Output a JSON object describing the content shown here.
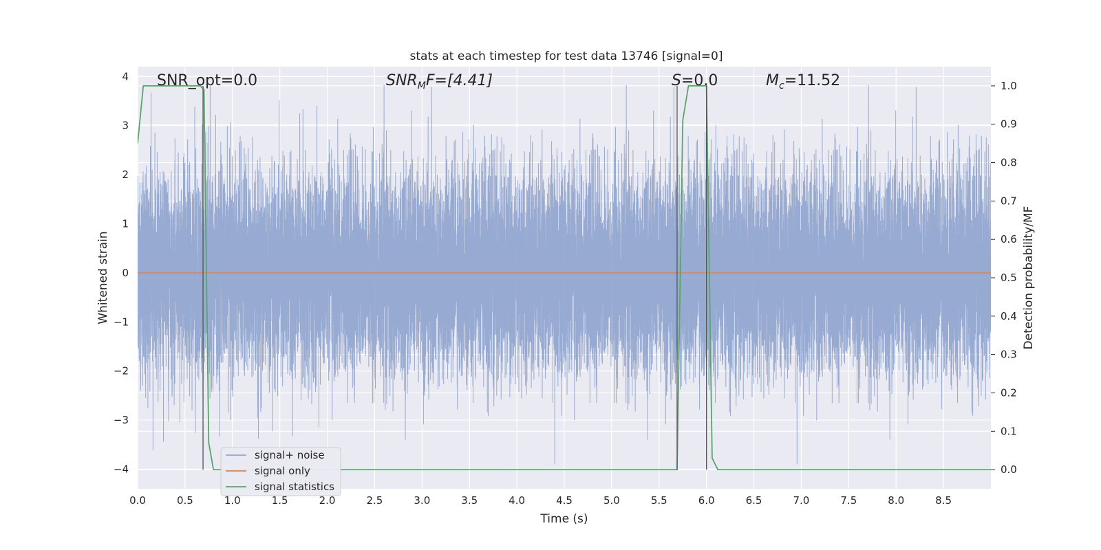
{
  "chart_data": {
    "type": "line",
    "title": "stats at each timestep for test data 13746 [signal=0]",
    "xlabel": "Time (s)",
    "ylabel_left": "Whitened strain",
    "ylabel_right": "Detection probability/MF",
    "xlim": [
      0,
      9
    ],
    "ylim_left": [
      -4.4,
      4.2
    ],
    "ylim_right": [
      -0.05,
      1.05
    ],
    "x_ticks": [
      0.0,
      0.5,
      1.0,
      1.5,
      2.0,
      2.5,
      3.0,
      3.5,
      4.0,
      4.5,
      5.0,
      5.5,
      6.0,
      6.5,
      7.0,
      7.5,
      8.0,
      8.5
    ],
    "x_tick_labels": [
      "0.0",
      "0.5",
      "1.0",
      "1.5",
      "2.0",
      "2.5",
      "3.0",
      "3.5",
      "4.0",
      "4.5",
      "5.0",
      "5.5",
      "6.0",
      "6.5",
      "7.0",
      "7.5",
      "8.0",
      "8.5"
    ],
    "y_left_ticks": [
      -4,
      -3,
      -2,
      -1,
      0,
      1,
      2,
      3,
      4
    ],
    "y_left_tick_labels": [
      "−4",
      "−3",
      "−2",
      "−1",
      "0",
      "1",
      "2",
      "3",
      "4"
    ],
    "y_right_ticks": [
      0.0,
      0.1,
      0.2,
      0.3,
      0.4,
      0.5,
      0.6,
      0.7,
      0.8,
      0.9,
      1.0
    ],
    "y_right_tick_labels": [
      "0.0",
      "0.1",
      "0.2",
      "0.3",
      "0.4",
      "0.5",
      "0.6",
      "0.7",
      "0.8",
      "0.9",
      "1.0"
    ],
    "grid": true,
    "legend_position": "lower-left",
    "annotations": {
      "snr_opt": "SNR_opt=0.0",
      "snr_mf_base": "SNR",
      "snr_mf_sub": "M",
      "snr_mf_rest": "F=[4.41]",
      "s_italic": "S",
      "s_rest": "=0.0",
      "mc_base": "M",
      "mc_sub": "c",
      "mc_rest": "=11.52"
    },
    "vertical_lines_x": [
      0.69,
      5.69,
      6.0
    ],
    "series": [
      {
        "name": "signal+ noise",
        "axis": "left",
        "color": "#92a6cf",
        "kind": "noise",
        "sample_rate_hz": 2048,
        "std": 1.0,
        "min": -3.9,
        "max": 3.9
      },
      {
        "name": "signal only",
        "axis": "left",
        "color": "#dd8452",
        "x": [
          0,
          9
        ],
        "values": [
          0,
          0
        ]
      },
      {
        "name": "signal statistics",
        "axis": "right",
        "color": "#55a868",
        "x": [
          0.0,
          0.06,
          0.1,
          0.2,
          0.3,
          0.4,
          0.5,
          0.6,
          0.66,
          0.7,
          0.75,
          0.8,
          0.9,
          1.0,
          2.0,
          3.0,
          4.0,
          5.0,
          5.5,
          5.69,
          5.75,
          5.81,
          5.9,
          6.0,
          6.06,
          6.12,
          6.2,
          7.0,
          8.0,
          9.0
        ],
        "values": [
          0.85,
          1.0,
          1.0,
          1.0,
          1.0,
          1.0,
          1.0,
          1.0,
          1.0,
          0.99,
          0.07,
          0.0,
          0.0,
          0.0,
          0.0,
          0.0,
          0.0,
          0.0,
          0.0,
          0.0,
          0.91,
          1.0,
          1.0,
          1.0,
          0.03,
          0.0,
          0.0,
          0.0,
          0.0,
          0.0
        ]
      }
    ]
  }
}
